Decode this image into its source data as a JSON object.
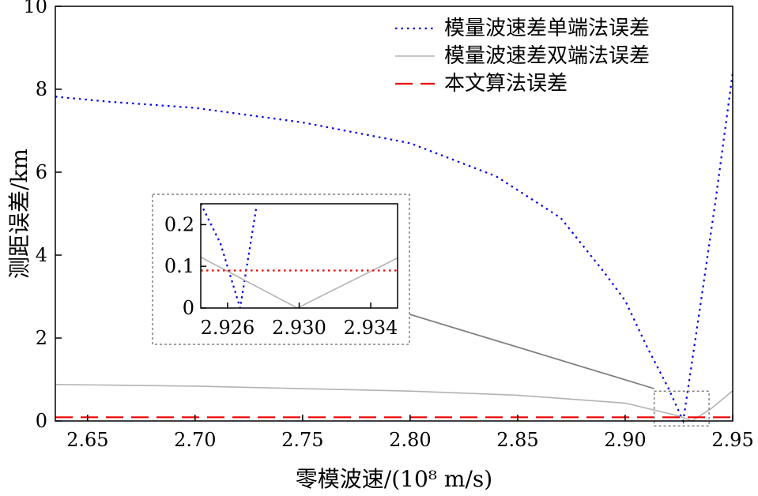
{
  "chart_data": [
    {
      "type": "line",
      "xlabel": "零模波速/(10⁸ m/s)",
      "ylabel": "测距误差/km",
      "xlim": [
        2.635,
        2.95
      ],
      "ylim": [
        0,
        10
      ],
      "x_ticks": [
        "2.65",
        "2.70",
        "2.75",
        "2.80",
        "2.85",
        "2.90",
        "2.95"
      ],
      "x_tick_values": [
        2.65,
        2.7,
        2.75,
        2.8,
        2.85,
        2.9,
        2.95
      ],
      "y_ticks": [
        "0",
        "2",
        "4",
        "6",
        "8",
        "10"
      ],
      "y_tick_values": [
        0,
        2,
        4,
        6,
        8,
        10
      ],
      "legend_position": "top-right",
      "series": [
        {
          "name": "模量波速差单端法误差",
          "color": "#0000ee",
          "style": "dotted",
          "x": [
            2.635,
            2.66,
            2.7,
            2.75,
            2.8,
            2.84,
            2.87,
            2.89,
            2.9,
            2.91,
            2.92,
            2.927,
            2.935,
            2.942,
            2.95
          ],
          "y": [
            7.82,
            7.7,
            7.55,
            7.2,
            6.7,
            5.9,
            4.9,
            3.6,
            2.9,
            1.8,
            0.8,
            0.0,
            2.8,
            5.3,
            8.4
          ]
        },
        {
          "name": "模量波速差双端法误差",
          "color": "#b3b3b3",
          "style": "solid",
          "x": [
            2.635,
            2.7,
            2.75,
            2.8,
            2.85,
            2.9,
            2.925,
            2.931,
            2.94,
            2.95
          ],
          "y": [
            0.88,
            0.84,
            0.78,
            0.72,
            0.62,
            0.43,
            0.12,
            0.0,
            0.3,
            0.73
          ]
        },
        {
          "name": "本文算法误差",
          "color": "#ee0000",
          "style": "dashed",
          "x": [
            2.635,
            2.95
          ],
          "y": [
            0.09,
            0.09
          ]
        }
      ]
    },
    {
      "type": "line",
      "title": "",
      "xlim": [
        2.9245,
        2.9355
      ],
      "ylim": [
        0,
        0.25
      ],
      "x_ticks": [
        "2.926",
        "2.930",
        "2.934"
      ],
      "x_tick_values": [
        2.926,
        2.93,
        2.934
      ],
      "y_ticks": [
        "0",
        "0.1",
        "0.2"
      ],
      "y_tick_values": [
        0,
        0.1,
        0.2
      ],
      "series": [
        {
          "name": "模量波速差单端法误差",
          "color": "#0000ee",
          "style": "dotted",
          "x": [
            2.9245,
            2.9256,
            2.9267,
            2.9276
          ],
          "y": [
            0.25,
            0.155,
            0.0,
            0.24
          ]
        },
        {
          "name": "模量波速差双端法误差",
          "color": "#b3b3b3",
          "style": "solid",
          "x": [
            2.9245,
            2.9299,
            2.9355
          ],
          "y": [
            0.122,
            0.0,
            0.12
          ]
        },
        {
          "name": "本文算法误差",
          "color": "#ee0000",
          "style": "dashed",
          "x": [
            2.9245,
            2.9355
          ],
          "y": [
            0.09,
            0.09
          ]
        }
      ]
    }
  ]
}
